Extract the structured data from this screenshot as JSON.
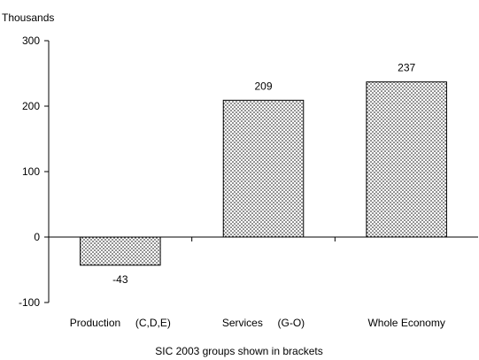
{
  "chart_data": {
    "type": "bar",
    "categories": [
      "Production     (C,D,E)",
      "Services     (G-O)",
      "Whole Economy"
    ],
    "values": [
      -43,
      209,
      237
    ],
    "data_labels": [
      "-43",
      "209",
      "237"
    ],
    "title": "",
    "ylabel": "Thousands",
    "xlabel": "SIC 2003 groups shown in brackets",
    "ylim": [
      -100,
      300
    ],
    "yticks": [
      -100,
      0,
      100,
      200,
      300
    ],
    "grid": false,
    "bar_fill": "dotted",
    "bar_color": "#000000"
  }
}
